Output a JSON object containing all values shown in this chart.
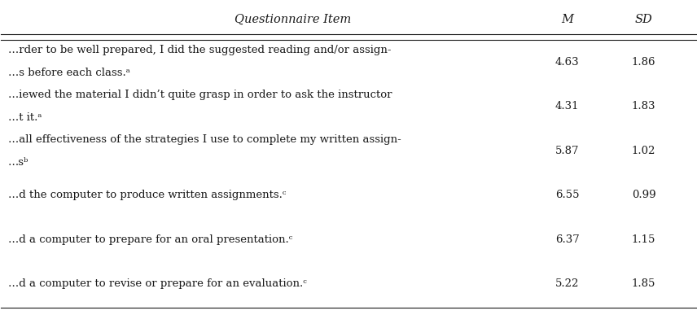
{
  "header": [
    "Questionnaire Item",
    "M",
    "SD"
  ],
  "rows": [
    {
      "line1": "…rder to be well prepared, I did the suggested reading and/or assign-",
      "line2": "…s before each class.ᵃ",
      "m": "4.63",
      "sd": "1.86"
    },
    {
      "line1": "…iewed the material I didn’t quite grasp in order to ask the instructor",
      "line2": "…t it.ᵃ",
      "m": "4.31",
      "sd": "1.83"
    },
    {
      "line1": "…all effectiveness of the strategies I use to complete my written assign-",
      "line2": "…sᵇ",
      "m": "5.87",
      "sd": "1.02"
    },
    {
      "line1": "…d the computer to produce written assignments.ᶜ",
      "line2": "",
      "m": "6.55",
      "sd": "0.99"
    },
    {
      "line1": "…d a computer to prepare for an oral presentation.ᶜ",
      "line2": "",
      "m": "6.37",
      "sd": "1.15"
    },
    {
      "line1": "…d a computer to revise or prepare for an evaluation.ᶜ",
      "line2": "",
      "m": "5.22",
      "sd": "1.85"
    }
  ],
  "bg_color": "#ffffff",
  "text_color": "#1a1a1a",
  "header_color": "#1a1a1a",
  "line_color": "#1a1a1a",
  "font_size": 9.5,
  "header_font_size": 10.5
}
